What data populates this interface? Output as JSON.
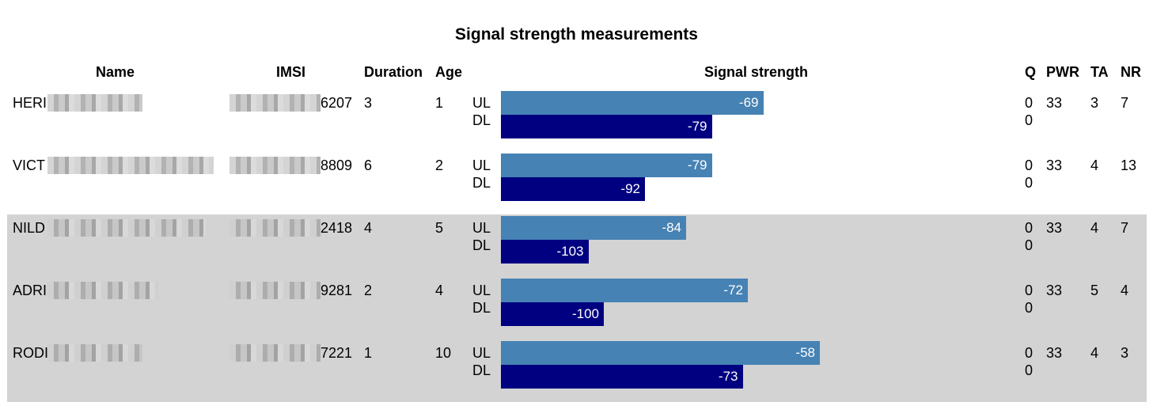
{
  "title": "Signal strength measurements",
  "headers": {
    "name": "Name",
    "imsi": "IMSI",
    "duration": "Duration",
    "age": "Age",
    "signal": "Signal strength",
    "q": "Q",
    "pwr": "PWR",
    "ta": "TA",
    "nr": "NR"
  },
  "colors": {
    "ul": "#4682b4",
    "dl": "#000080",
    "shaded_row": "#d3d3d3"
  },
  "rows": [
    {
      "name": "HERI",
      "imsi": "6207",
      "duration": "3",
      "age": "1",
      "ul_label": "UL",
      "dl_label": "DL",
      "ul": -69,
      "dl": -79,
      "q_ul": "0",
      "q_dl": "0",
      "pwr": "33",
      "ta": "3",
      "nr": "7"
    },
    {
      "name": "VICT",
      "imsi": "8809",
      "duration": "6",
      "age": "2",
      "ul_label": "UL",
      "dl_label": "DL",
      "ul": -79,
      "dl": -92,
      "q_ul": "0",
      "q_dl": "0",
      "pwr": "33",
      "ta": "4",
      "nr": "13"
    },
    {
      "name": "NILD",
      "imsi": "2418",
      "duration": "4",
      "age": "5",
      "ul_label": "UL",
      "dl_label": "DL",
      "ul": -84,
      "dl": -103,
      "q_ul": "0",
      "q_dl": "0",
      "pwr": "33",
      "ta": "4",
      "nr": "7"
    },
    {
      "name": "ADRI",
      "imsi": "9281",
      "duration": "2",
      "age": "4",
      "ul_label": "UL",
      "dl_label": "DL",
      "ul": -72,
      "dl": -100,
      "q_ul": "0",
      "q_dl": "0",
      "pwr": "33",
      "ta": "5",
      "nr": "4"
    },
    {
      "name": "RODI",
      "imsi": "7221",
      "duration": "1",
      "age": "10",
      "ul_label": "UL",
      "dl_label": "DL",
      "ul": -58,
      "dl": -73,
      "q_ul": "0",
      "q_dl": "0",
      "pwr": "33",
      "ta": "4",
      "nr": "3"
    }
  ]
}
